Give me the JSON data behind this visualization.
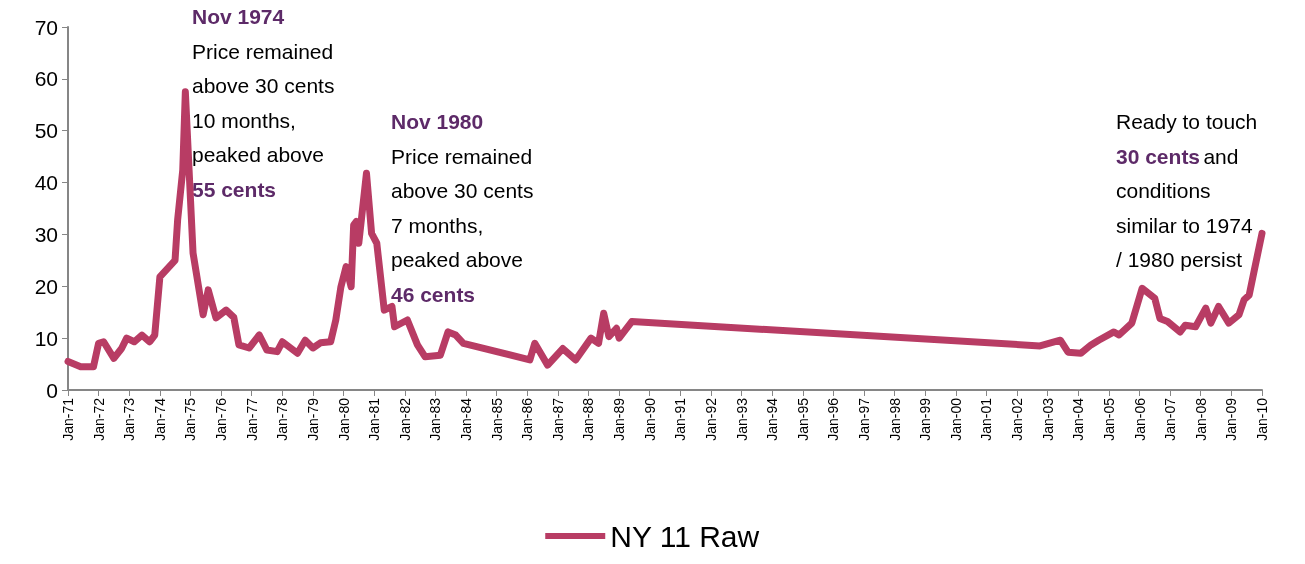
{
  "chart_data": {
    "type": "line",
    "x": [
      "1971-01",
      "1971-06",
      "1971-11",
      "1972-01",
      "1972-03",
      "1972-07",
      "1972-10",
      "1972-12",
      "1973-03",
      "1973-06",
      "1973-09",
      "1973-11",
      "1974-01",
      "1974-07",
      "1974-08",
      "1974-10",
      "1974-11",
      "1975-02",
      "1975-06",
      "1975-08",
      "1975-11",
      "1976-03",
      "1976-06",
      "1976-08",
      "1976-12",
      "1977-04",
      "1977-07",
      "1977-11",
      "1978-01",
      "1978-07",
      "1978-10",
      "1979-01",
      "1979-04",
      "1979-08",
      "1979-10",
      "1979-12",
      "1980-02",
      "1980-04",
      "1980-05",
      "1980-06",
      "1980-07",
      "1980-10",
      "1980-12",
      "1981-02",
      "1981-05",
      "1981-08",
      "1981-09",
      "1982-02",
      "1982-06",
      "1982-09",
      "1983-03",
      "1983-06",
      "1983-09",
      "1983-12",
      "1986-02",
      "1986-04",
      "1986-09",
      "1987-03",
      "1987-08",
      "1988-02",
      "1988-05",
      "1988-07",
      "1988-09",
      "1988-12",
      "1989-01",
      "1989-06",
      "2002-10",
      "2003-06",
      "2003-09",
      "2004-02",
      "2004-06",
      "2004-09",
      "2005-03",
      "2005-05",
      "2005-10",
      "2006-02",
      "2006-07",
      "2006-09",
      "2006-12",
      "2007-05",
      "2007-07",
      "2007-11",
      "2008-03",
      "2008-05",
      "2008-08",
      "2008-12",
      "2009-04",
      "2009-06",
      "2009-08",
      "2009-10",
      "2010-01"
    ],
    "series": [
      {
        "name": "NY 11 Raw",
        "color": "#b83c64",
        "values": [
          5.5,
          4.5,
          4.5,
          9.0,
          9.3,
          6.1,
          8.0,
          10.0,
          9.3,
          10.6,
          9.3,
          10.6,
          21.8,
          25,
          32.8,
          42.4,
          57.5,
          26.4,
          14.5,
          19.3,
          13.9,
          15.4,
          14,
          8.7,
          8.1,
          10.6,
          7.7,
          7.4,
          9.3,
          7.1,
          9.6,
          8.1,
          9.1,
          9.3,
          13.5,
          19.9,
          23.8,
          19.9,
          31.8,
          32.5,
          28.3,
          41.8,
          30.2,
          28.3,
          15.4,
          16.1,
          12.2,
          13.5,
          8.7,
          6.4,
          6.7,
          11.2,
          10.6,
          9,
          5.8,
          9.0,
          4.8,
          8.0,
          5.8,
          10.0,
          9.0,
          14.8,
          10.3,
          11.9,
          10.0,
          13.2,
          8.5,
          9.6,
          7.3,
          7.1,
          8.7,
          9.6,
          11.2,
          10.6,
          12.9,
          19.6,
          17.7,
          13.8,
          13.2,
          11.2,
          12.5,
          12.2,
          15.8,
          12.9,
          16.1,
          12.9,
          14.5,
          17.4,
          18.3,
          23.1,
          30.2
        ]
      }
    ],
    "xlim": [
      "1971-01",
      "2010-01"
    ],
    "xticks": [
      {
        "value": "1971-01",
        "label": "Jan-71"
      },
      {
        "value": "1972-01",
        "label": "Jan-72"
      },
      {
        "value": "1973-01",
        "label": "Jan-73"
      },
      {
        "value": "1974-01",
        "label": "Jan-74"
      },
      {
        "value": "1975-01",
        "label": "Jan-75"
      },
      {
        "value": "1976-01",
        "label": "Jan-76"
      },
      {
        "value": "1977-01",
        "label": "Jan-77"
      },
      {
        "value": "1978-01",
        "label": "Jan-78"
      },
      {
        "value": "1979-01",
        "label": "Jan-79"
      },
      {
        "value": "1980-01",
        "label": "Jan-80"
      },
      {
        "value": "1981-01",
        "label": "Jan-81"
      },
      {
        "value": "1982-01",
        "label": "Jan-82"
      },
      {
        "value": "1983-01",
        "label": "Jan-83"
      },
      {
        "value": "1984-01",
        "label": "Jan-84"
      },
      {
        "value": "1985-01",
        "label": "Jan-85"
      },
      {
        "value": "1986-01",
        "label": "Jan-86"
      },
      {
        "value": "1987-01",
        "label": "Jan-87"
      },
      {
        "value": "1988-01",
        "label": "Jan-88"
      },
      {
        "value": "1989-01",
        "label": "Jan-89"
      },
      {
        "value": "1990-01",
        "label": "Jan-90"
      },
      {
        "value": "1991-01",
        "label": "Jan-91"
      },
      {
        "value": "1992-01",
        "label": "Jan-92"
      },
      {
        "value": "1993-01",
        "label": "Jan-93"
      },
      {
        "value": "1994-01",
        "label": "Jan-94"
      },
      {
        "value": "1995-01",
        "label": "Jan-95"
      },
      {
        "value": "1996-01",
        "label": "Jan-96"
      },
      {
        "value": "1997-01",
        "label": "Jan-97"
      },
      {
        "value": "1998-01",
        "label": "Jan-98"
      },
      {
        "value": "1999-01",
        "label": "Jan-99"
      },
      {
        "value": "2000-01",
        "label": "Jan-00"
      },
      {
        "value": "2001-01",
        "label": "Jan-01"
      },
      {
        "value": "2002-01",
        "label": "Jan-02"
      },
      {
        "value": "2003-01",
        "label": "Jan-03"
      },
      {
        "value": "2004-01",
        "label": "Jan-04"
      },
      {
        "value": "2005-01",
        "label": "Jan-05"
      },
      {
        "value": "2006-01",
        "label": "Jan-06"
      },
      {
        "value": "2007-01",
        "label": "Jan-07"
      },
      {
        "value": "2008-01",
        "label": "Jan-08"
      },
      {
        "value": "2009-01",
        "label": "Jan-09"
      },
      {
        "value": "2010-01",
        "label": "Jan-10"
      }
    ],
    "ylim": [
      0,
      70
    ],
    "yticks": [
      0,
      10,
      20,
      30,
      40,
      50,
      60,
      70
    ],
    "grid": false,
    "legend": "bottom",
    "line_style": "solid",
    "annotations": [
      "Nov 1974",
      "Price remained\nabove 30 cents\n10 months,\npeaked above",
      "55 cents",
      "Nov 1980",
      "Price remained\nabove 30 cents\n7 months,\npeaked above",
      "46 cents",
      "Ready to touch",
      "30 cents",
      "and\nconditions\nsimilar to 1974\n/ 1980 persist"
    ]
  }
}
